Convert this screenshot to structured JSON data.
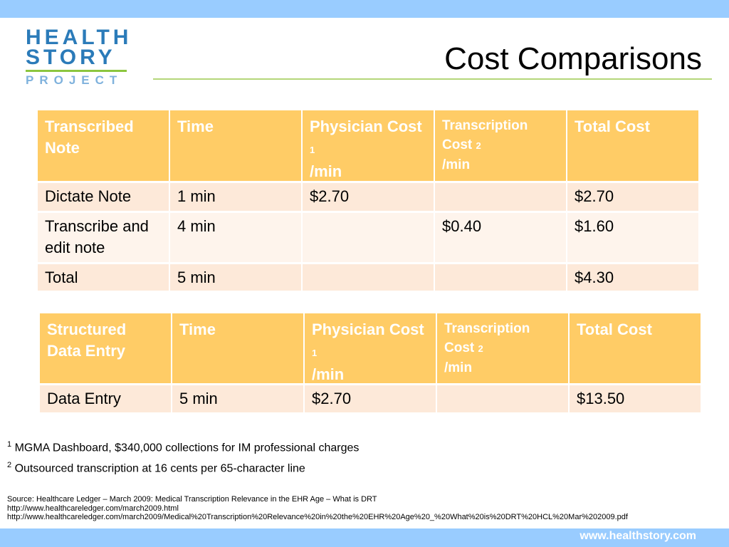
{
  "logo": {
    "lines": [
      "HEALTH",
      "STORY",
      "PROJECT"
    ]
  },
  "title": "Cost Comparisons",
  "tables": [
    {
      "header": [
        {
          "text": "Transcribed Note"
        },
        {
          "text": "Time"
        },
        {
          "text": "Physician Cost",
          "note": "1",
          "unit": "/min"
        },
        {
          "text": "Transcription Cost",
          "note": "2",
          "unit": "/min"
        },
        {
          "text": "Total Cost"
        }
      ],
      "rows": [
        [
          "Dictate Note",
          "1 min",
          "$2.70",
          null,
          "$2.70"
        ],
        [
          "Transcribe and edit note",
          "4 min",
          null,
          "$0.40",
          "$1.60"
        ],
        [
          "Total",
          "5 min",
          null,
          null,
          "$4.30"
        ]
      ]
    },
    {
      "header": [
        {
          "text": "Structured Data Entry"
        },
        {
          "text": "Time"
        },
        {
          "text": "Physician Cost",
          "note": "1",
          "unit": "/min"
        },
        {
          "text": "Transcription Cost",
          "note": "2",
          "unit": "/min"
        },
        {
          "text": "Total Cost"
        }
      ],
      "rows": [
        [
          "Data Entry",
          "5 min",
          "$2.70",
          null,
          "$13.50"
        ]
      ]
    }
  ],
  "footnotes": [
    {
      "mark": "1",
      "text": "MGMA Dashboard, $340,000 collections for IM professional charges"
    },
    {
      "mark": "2",
      "text": "Outsourced transcription at 16 cents per 65-character line"
    }
  ],
  "source": [
    "Source: Healthcare Ledger – March 2009: Medical Transcription Relevance in the EHR Age – What is DRT",
    "http://www.healthcareledger.com/march2009.html",
    "http://www.healthcareledger.com/march2009/Medical%20Transcription%20Relevance%20in%20the%20EHR%20Age%20_%20What%20is%20DRT%20HCL%20Mar%202009.pdf"
  ],
  "footer": "www.healthstory.com"
}
